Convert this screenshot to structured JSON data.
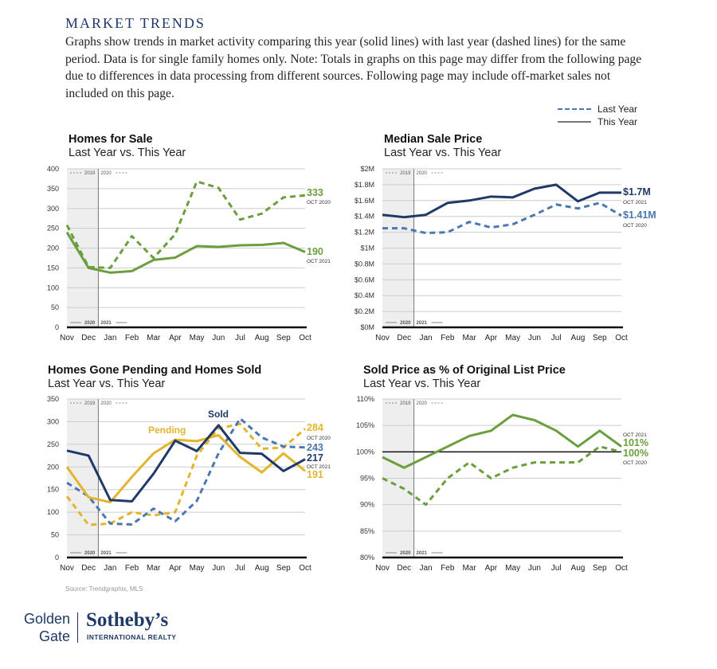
{
  "header": {
    "title": "MARKET TRENDS",
    "body": "Graphs show trends in market activity comparing this year (solid lines) with last year (dashed lines) for the same period. Data is for single family homes only. Note: Totals in graphs on this page may differ from the following page due to differences in data processing from different sources. Following page may include off-market sales not included on this page."
  },
  "legend": {
    "last_year": "Last Year",
    "this_year": "This Year"
  },
  "inner_legend": {
    "top_left": "2019",
    "top_right": "2020",
    "bottom_left": "2020",
    "bottom_right": "2021"
  },
  "colors": {
    "green": "#6b9e3c",
    "navy": "#1f3a68",
    "blue": "#4a78b0",
    "gold": "#e2b52c",
    "shade": "#eeeeee",
    "grid": "#cccccc"
  },
  "chart_data": [
    {
      "type": "line",
      "title": "Homes for Sale",
      "subtitle": "Last Year vs. This Year",
      "categories": [
        "Nov",
        "Dec",
        "Jan",
        "Feb",
        "Mar",
        "Apr",
        "May",
        "Jun",
        "Jul",
        "Aug",
        "Sep",
        "Oct"
      ],
      "ylim": [
        0,
        400
      ],
      "yticks": [
        "0",
        "50",
        "100",
        "150",
        "200",
        "250",
        "300",
        "350",
        "400"
      ],
      "grid": true,
      "series": [
        {
          "period": "last year",
          "style": "dashed",
          "color": "#6b9e3c",
          "values": [
            258,
            152,
            150,
            230,
            175,
            235,
            368,
            352,
            272,
            287,
            328,
            333
          ],
          "end_label": "333",
          "end_sublabel": "OCT 2020"
        },
        {
          "period": "this year",
          "style": "solid",
          "color": "#6b9e3c",
          "values": [
            240,
            150,
            138,
            142,
            170,
            176,
            205,
            203,
            207,
            208,
            213,
            190
          ],
          "end_label": "190",
          "end_sublabel": "OCT 2021"
        }
      ]
    },
    {
      "type": "line",
      "title": "Median Sale Price",
      "subtitle": "Last Year vs. This Year",
      "categories": [
        "Nov",
        "Dec",
        "Jan",
        "Feb",
        "Mar",
        "Apr",
        "May",
        "Jun",
        "Jul",
        "Aug",
        "Sep",
        "Oct"
      ],
      "ylim": [
        0,
        2
      ],
      "yticks": [
        "$0M",
        "$0.2M",
        "$0.4M",
        "$0.6M",
        "$0.8M",
        "$1M",
        "$1.2M",
        "$1.4M",
        "$1.6M",
        "$1.8M",
        "$2M"
      ],
      "grid": true,
      "series": [
        {
          "period": "this year",
          "style": "solid",
          "color": "#1f3a68",
          "values": [
            1.42,
            1.39,
            1.42,
            1.57,
            1.6,
            1.65,
            1.64,
            1.75,
            1.8,
            1.59,
            1.7,
            1.7
          ],
          "end_label": "$1.7M",
          "end_sublabel": "OCT 2021"
        },
        {
          "period": "last year",
          "style": "dashed",
          "color": "#4a78b0",
          "values": [
            1.25,
            1.25,
            1.19,
            1.2,
            1.33,
            1.26,
            1.3,
            1.42,
            1.55,
            1.5,
            1.57,
            1.41
          ],
          "end_label": "$1.41M",
          "end_sublabel": "OCT 2020"
        }
      ]
    },
    {
      "type": "line",
      "title": "Homes Gone Pending and Homes Sold",
      "subtitle": "Last Year vs. This Year",
      "categories": [
        "Nov",
        "Dec",
        "Jan",
        "Feb",
        "Mar",
        "Apr",
        "May",
        "Jun",
        "Jul",
        "Aug",
        "Sep",
        "Oct"
      ],
      "ylim": [
        0,
        350
      ],
      "yticks": [
        "0",
        "50",
        "100",
        "150",
        "200",
        "250",
        "300",
        "350"
      ],
      "grid": true,
      "annotations": [
        {
          "text": "Pending",
          "color": "#e2b52c"
        },
        {
          "text": "Sold",
          "color": "#1f3a68"
        }
      ],
      "series": [
        {
          "period": "last year",
          "style": "dashed",
          "color": "#e2b52c",
          "values": [
            135,
            72,
            75,
            100,
            93,
            100,
            225,
            285,
            295,
            240,
            243,
            284
          ],
          "end_label": "284",
          "end_sublabel": "OCT 2020"
        },
        {
          "period": "last year",
          "style": "dashed",
          "color": "#4a78b0",
          "values": [
            165,
            135,
            75,
            73,
            108,
            80,
            125,
            230,
            307,
            265,
            245,
            243
          ],
          "end_label": "243",
          "end_sublabel": ""
        },
        {
          "period": "this year",
          "style": "solid",
          "color": "#e2b52c",
          "values": [
            200,
            133,
            122,
            178,
            230,
            260,
            257,
            270,
            222,
            188,
            230,
            191
          ],
          "end_label": "191",
          "end_sublabel": ""
        },
        {
          "period": "this year",
          "style": "solid",
          "color": "#1f3a68",
          "values": [
            236,
            225,
            127,
            124,
            185,
            258,
            235,
            292,
            231,
            229,
            191,
            217
          ],
          "end_label": "217",
          "end_sublabel": "OCT 2021"
        }
      ]
    },
    {
      "type": "line",
      "title": "Sold Price as % of Original List Price",
      "subtitle": "Last Year vs. This Year",
      "categories": [
        "Nov",
        "Dec",
        "Jan",
        "Feb",
        "Mar",
        "Apr",
        "May",
        "Jun",
        "Jul",
        "Aug",
        "Sep",
        "Oct"
      ],
      "ylim": [
        80,
        110
      ],
      "yticks": [
        "80%",
        "85%",
        "90%",
        "95%",
        "100%",
        "105%",
        "110%"
      ],
      "grid": true,
      "reference_line": 100,
      "series": [
        {
          "period": "last year",
          "style": "dashed",
          "color": "#6b9e3c",
          "values": [
            95,
            93,
            90,
            95,
            98,
            95,
            97,
            98,
            98,
            98,
            101,
            100
          ],
          "end_label": "100%",
          "end_sublabel": "OCT 2020"
        },
        {
          "period": "this year",
          "style": "solid",
          "color": "#6b9e3c",
          "values": [
            99,
            97,
            99,
            101,
            103,
            104,
            107,
            106,
            104,
            101,
            104,
            101
          ],
          "end_label": "101%",
          "end_sublabel": "OCT 2021"
        }
      ]
    }
  ],
  "footer": {
    "source": "Source: Trendgraphix, MLS",
    "logo_left_1": "Golden",
    "logo_left_2": "Gate",
    "logo_main": "Sotheby’s",
    "logo_sub": "INTERNATIONAL REALTY"
  }
}
